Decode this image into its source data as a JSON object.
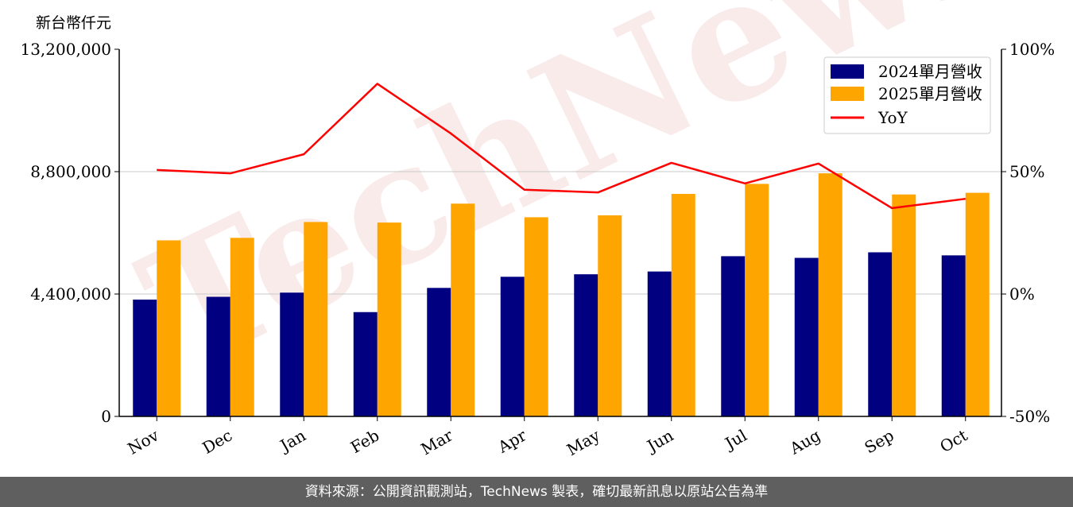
{
  "chart_data": {
    "type": "bar",
    "unit_label": "新台幣仟元",
    "categories": [
      "Nov",
      "Dec",
      "Jan",
      "Feb",
      "Mar",
      "Apr",
      "May",
      "Jun",
      "Jul",
      "Aug",
      "Sep",
      "Oct"
    ],
    "series": [
      {
        "name": "2024單月營收",
        "type": "bar",
        "axis": "left",
        "color": "#000080",
        "values": [
          4200000,
          4300000,
          4450000,
          3750000,
          4620000,
          5020000,
          5110000,
          5210000,
          5760000,
          5700000,
          5900000,
          5790000
        ]
      },
      {
        "name": "2025單月營收",
        "type": "bar",
        "axis": "right-free",
        "color": "#ffa500",
        "values": [
          6330000,
          6420000,
          6990000,
          6970000,
          7650000,
          7160000,
          7230000,
          8000000,
          8360000,
          8740000,
          7980000,
          8040000
        ]
      },
      {
        "name": "YoY",
        "type": "line",
        "axis": "right",
        "unit": "%",
        "color": "#ff0000",
        "values": [
          50.7,
          49.3,
          57.1,
          85.9,
          65.6,
          42.6,
          41.5,
          53.6,
          45.2,
          53.3,
          35.1,
          38.9
        ]
      }
    ],
    "left_axis": {
      "ylim": [
        0,
        13200000
      ],
      "ticks": [
        "0",
        "4,400,000",
        "8,800,000",
        "13,200,000"
      ],
      "tick_values": [
        0,
        4400000,
        8800000,
        13200000
      ]
    },
    "right_axis": {
      "ylim": [
        -50,
        100
      ],
      "ticks": [
        "-50%",
        "0%",
        "50%",
        "100%"
      ],
      "tick_values": [
        -50,
        0,
        50,
        100
      ]
    },
    "grid": "horizontal",
    "legend_position": "top-right",
    "watermark": "TechNews"
  },
  "footer": {
    "source_text": "資料來源：公開資訊觀測站，TechNews 製表，確切最新訊息以原站公告為準"
  }
}
